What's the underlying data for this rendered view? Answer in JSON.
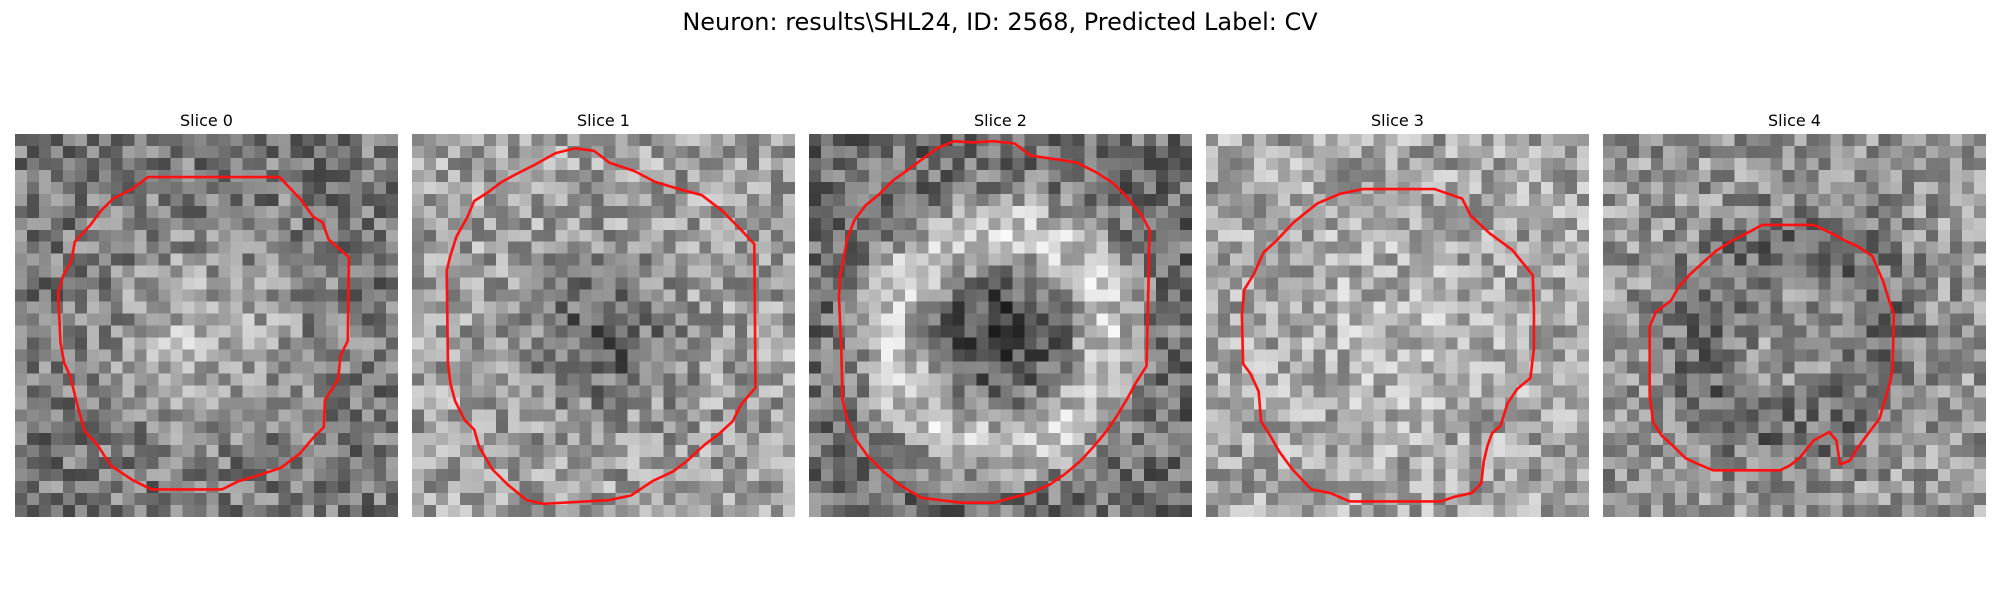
{
  "figure": {
    "suptitle": "Neuron: results\\SHL24, ID: 2568, Predicted Label: CV"
  },
  "slices": [
    {
      "title": "Slice 0",
      "seed": 11,
      "pattern": "bright-center",
      "contour": [
        [
          15.0,
          3.6
        ],
        [
          22.1,
          3.6
        ],
        [
          23.9,
          5.5
        ],
        [
          24.9,
          6.9
        ],
        [
          25.7,
          7.4
        ],
        [
          26.2,
          8.8
        ],
        [
          27.0,
          9.5
        ],
        [
          27.9,
          10.3
        ],
        [
          27.8,
          17.3
        ],
        [
          27.2,
          18.5
        ],
        [
          27.0,
          20.5
        ],
        [
          26.5,
          21.3
        ],
        [
          25.9,
          22.2
        ],
        [
          25.8,
          24.5
        ],
        [
          24.9,
          25.4
        ],
        [
          23.8,
          26.7
        ],
        [
          22.2,
          27.9
        ],
        [
          20.1,
          28.6
        ],
        [
          18.7,
          29.0
        ],
        [
          17.3,
          29.7
        ],
        [
          11.4,
          29.7
        ],
        [
          9.8,
          28.9
        ],
        [
          8.0,
          27.7
        ],
        [
          6.9,
          26.0
        ],
        [
          5.8,
          24.8
        ],
        [
          5.2,
          22.6
        ],
        [
          4.6,
          20.2
        ],
        [
          4.1,
          19.1
        ],
        [
          3.8,
          17.4
        ],
        [
          3.6,
          13.3
        ],
        [
          4.0,
          11.9
        ],
        [
          4.7,
          10.6
        ],
        [
          5.0,
          9.0
        ],
        [
          6.3,
          7.6
        ],
        [
          7.2,
          6.4
        ],
        [
          8.2,
          5.4
        ],
        [
          9.8,
          4.6
        ],
        [
          11.1,
          3.6
        ]
      ]
    },
    {
      "title": "Slice 1",
      "seed": 23,
      "pattern": "dark-center",
      "contour": [
        [
          12.0,
          1.6
        ],
        [
          13.6,
          1.2
        ],
        [
          15.2,
          1.4
        ],
        [
          16.5,
          2.4
        ],
        [
          18.6,
          3.1
        ],
        [
          20.3,
          4.0
        ],
        [
          22.3,
          4.6
        ],
        [
          24.2,
          5.1
        ],
        [
          25.9,
          6.4
        ],
        [
          27.4,
          7.9
        ],
        [
          28.6,
          9.2
        ],
        [
          28.7,
          21.2
        ],
        [
          27.5,
          22.6
        ],
        [
          26.8,
          24.0
        ],
        [
          25.6,
          25.1
        ],
        [
          24.4,
          26.0
        ],
        [
          23.0,
          27.3
        ],
        [
          21.8,
          28.2
        ],
        [
          20.1,
          29.0
        ],
        [
          18.3,
          30.2
        ],
        [
          16.4,
          30.6
        ],
        [
          11.0,
          30.9
        ],
        [
          9.6,
          30.6
        ],
        [
          8.0,
          29.3
        ],
        [
          6.7,
          28.0
        ],
        [
          5.6,
          26.1
        ],
        [
          5.2,
          24.7
        ],
        [
          4.4,
          23.9
        ],
        [
          3.6,
          22.3
        ],
        [
          3.2,
          20.8
        ],
        [
          3.0,
          19.0
        ],
        [
          2.9,
          11.4
        ],
        [
          3.2,
          10.2
        ],
        [
          3.7,
          8.6
        ],
        [
          4.6,
          7.0
        ],
        [
          5.2,
          5.6
        ],
        [
          6.3,
          4.9
        ],
        [
          7.5,
          4.0
        ],
        [
          8.8,
          3.3
        ],
        [
          10.2,
          2.6
        ]
      ]
    },
    {
      "title": "Slice 2",
      "seed": 37,
      "pattern": "ring",
      "contour": [
        [
          10.7,
          1.2
        ],
        [
          12.1,
          0.6
        ],
        [
          13.6,
          0.7
        ],
        [
          15.4,
          0.6
        ],
        [
          17.2,
          0.8
        ],
        [
          18.5,
          1.8
        ],
        [
          20.6,
          2.1
        ],
        [
          22.4,
          2.4
        ],
        [
          24.0,
          3.2
        ],
        [
          25.4,
          4.1
        ],
        [
          26.6,
          5.3
        ],
        [
          27.8,
          6.8
        ],
        [
          28.5,
          8.1
        ],
        [
          28.4,
          9.6
        ],
        [
          28.4,
          11.0
        ],
        [
          28.2,
          19.4
        ],
        [
          27.3,
          20.8
        ],
        [
          26.6,
          22.1
        ],
        [
          25.7,
          23.6
        ],
        [
          24.8,
          24.9
        ],
        [
          23.8,
          26.1
        ],
        [
          22.7,
          27.3
        ],
        [
          21.4,
          28.4
        ],
        [
          20.1,
          29.3
        ],
        [
          18.5,
          30.0
        ],
        [
          16.9,
          30.4
        ],
        [
          15.5,
          30.8
        ],
        [
          12.7,
          30.8
        ],
        [
          9.4,
          30.4
        ],
        [
          7.7,
          29.4
        ],
        [
          6.2,
          28.2
        ],
        [
          4.9,
          26.9
        ],
        [
          3.9,
          25.5
        ],
        [
          3.2,
          23.9
        ],
        [
          2.8,
          22.2
        ],
        [
          2.7,
          18.0
        ],
        [
          2.5,
          13.6
        ],
        [
          2.6,
          11.9
        ],
        [
          2.9,
          10.3
        ],
        [
          3.2,
          8.7
        ],
        [
          3.8,
          7.2
        ],
        [
          4.7,
          6.0
        ],
        [
          5.9,
          5.0
        ],
        [
          7.0,
          3.9
        ],
        [
          8.4,
          2.9
        ],
        [
          9.6,
          2.0
        ]
      ]
    },
    {
      "title": "Slice 3",
      "seed": 41,
      "pattern": "light-flat",
      "contour": [
        [
          14.7,
          4.6
        ],
        [
          19.1,
          4.6
        ],
        [
          21.4,
          5.4
        ],
        [
          22.1,
          6.8
        ],
        [
          23.7,
          8.3
        ],
        [
          25.6,
          9.7
        ],
        [
          27.3,
          11.8
        ],
        [
          27.4,
          14.6
        ],
        [
          27.4,
          17.9
        ],
        [
          27.1,
          20.4
        ],
        [
          26.0,
          21.3
        ],
        [
          25.2,
          22.5
        ],
        [
          24.6,
          24.4
        ],
        [
          23.9,
          25.0
        ],
        [
          23.5,
          26.1
        ],
        [
          23.2,
          27.4
        ],
        [
          23.0,
          29.2
        ],
        [
          22.2,
          30.0
        ],
        [
          20.8,
          30.3
        ],
        [
          19.6,
          30.7
        ],
        [
          12.0,
          30.7
        ],
        [
          10.4,
          30.0
        ],
        [
          8.8,
          29.7
        ],
        [
          7.2,
          28.0
        ],
        [
          6.1,
          26.5
        ],
        [
          5.3,
          25.1
        ],
        [
          4.6,
          24.0
        ],
        [
          4.4,
          21.5
        ],
        [
          3.7,
          20.0
        ],
        [
          3.1,
          19.2
        ],
        [
          3.0,
          15.2
        ],
        [
          3.2,
          13.0
        ],
        [
          4.0,
          11.7
        ],
        [
          4.8,
          9.9
        ],
        [
          5.9,
          8.9
        ],
        [
          7.3,
          7.4
        ],
        [
          9.3,
          5.8
        ],
        [
          11.2,
          5.0
        ],
        [
          13.1,
          4.6
        ]
      ]
    },
    {
      "title": "Slice 4",
      "seed": 53,
      "pattern": "dark-ring",
      "contour": [
        [
          13.3,
          7.6
        ],
        [
          17.6,
          7.6
        ],
        [
          19.1,
          8.3
        ],
        [
          20.2,
          8.9
        ],
        [
          21.3,
          9.4
        ],
        [
          22.5,
          10.2
        ],
        [
          23.4,
          12.3
        ],
        [
          23.9,
          13.9
        ],
        [
          24.3,
          15.1
        ],
        [
          24.2,
          19.7
        ],
        [
          23.9,
          21.1
        ],
        [
          23.5,
          22.4
        ],
        [
          23.1,
          23.8
        ],
        [
          22.1,
          25.1
        ],
        [
          21.3,
          26.2
        ],
        [
          20.6,
          27.3
        ],
        [
          19.8,
          27.6
        ],
        [
          19.5,
          25.6
        ],
        [
          18.9,
          24.9
        ],
        [
          17.6,
          25.6
        ],
        [
          16.4,
          27.1
        ],
        [
          15.6,
          27.7
        ],
        [
          14.8,
          28.1
        ],
        [
          9.2,
          28.1
        ],
        [
          8.0,
          27.6
        ],
        [
          6.9,
          27.1
        ],
        [
          5.9,
          26.1
        ],
        [
          4.9,
          25.2
        ],
        [
          4.2,
          24.1
        ],
        [
          3.9,
          21.9
        ],
        [
          3.9,
          17.9
        ],
        [
          3.9,
          16.1
        ],
        [
          4.4,
          14.9
        ],
        [
          5.7,
          13.9
        ],
        [
          6.3,
          12.8
        ],
        [
          7.3,
          11.7
        ],
        [
          8.4,
          10.7
        ],
        [
          9.4,
          9.8
        ],
        [
          10.8,
          8.9
        ],
        [
          12.0,
          8.3
        ]
      ]
    }
  ],
  "colors": {
    "contour": "#ff1111",
    "background": "#ffffff"
  },
  "icons": []
}
